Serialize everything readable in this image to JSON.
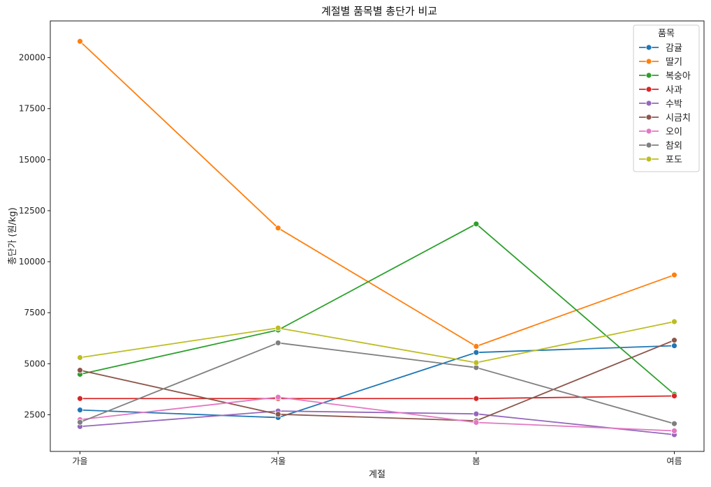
{
  "chart_data": {
    "type": "line",
    "title": "계절별 품목별 총단가 비교",
    "xlabel": "계절",
    "ylabel": "총단가 (원/kg)",
    "categories": [
      "가을",
      "겨울",
      "봄",
      "여름"
    ],
    "ylim": [
      700,
      21800
    ],
    "yticks": [
      2500,
      5000,
      7500,
      10000,
      12500,
      15000,
      17500,
      20000
    ],
    "grid": false,
    "legend": {
      "title": "품목",
      "placement": "top-right"
    },
    "series": [
      {
        "name": "감귤",
        "color": "#1f77b4",
        "values": [
          2730,
          2360,
          5550,
          5880
        ]
      },
      {
        "name": "딸기",
        "color": "#ff7f0e",
        "values": [
          20800,
          11650,
          5850,
          9350
        ]
      },
      {
        "name": "복숭아",
        "color": "#2ca02c",
        "values": [
          4480,
          6650,
          11850,
          3500
        ]
      },
      {
        "name": "사과",
        "color": "#d62728",
        "values": [
          3290,
          3290,
          3290,
          3420
        ]
      },
      {
        "name": "수박",
        "color": "#9467bd",
        "values": [
          1920,
          2680,
          2540,
          1520
        ]
      },
      {
        "name": "시금치",
        "color": "#8c564b",
        "values": [
          4680,
          2520,
          2200,
          6150
        ]
      },
      {
        "name": "오이",
        "color": "#e377c2",
        "values": [
          2260,
          3360,
          2120,
          1710
        ]
      },
      {
        "name": "참외",
        "color": "#7f7f7f",
        "values": [
          2130,
          6020,
          4810,
          2060
        ]
      },
      {
        "name": "포도",
        "color": "#bcbd22",
        "values": [
          5300,
          6750,
          5050,
          7060
        ]
      }
    ]
  }
}
